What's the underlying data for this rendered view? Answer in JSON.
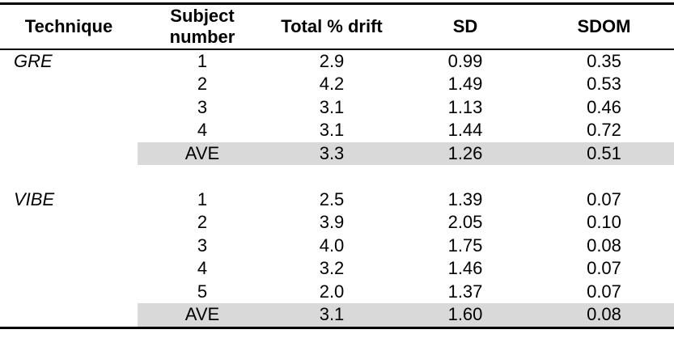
{
  "colors": {
    "background": "#ffffff",
    "text": "#000000",
    "rule": "#000000",
    "average_band": "#d9d9d9"
  },
  "table": {
    "headers": {
      "technique": "Technique",
      "subject": "Subject number",
      "drift": "Total % drift",
      "sd": "SD",
      "sdom": "SDOM"
    },
    "groups": [
      {
        "technique": "GRE",
        "rows": [
          {
            "subject": "1",
            "drift": "2.9",
            "sd": "0.99",
            "sdom": "0.35"
          },
          {
            "subject": "2",
            "drift": "4.2",
            "sd": "1.49",
            "sdom": "0.53"
          },
          {
            "subject": "3",
            "drift": "3.1",
            "sd": "1.13",
            "sdom": "0.46"
          },
          {
            "subject": "4",
            "drift": "3.1",
            "sd": "1.44",
            "sdom": "0.72"
          }
        ],
        "average": {
          "subject": "AVE",
          "drift": "3.3",
          "sd": "1.26",
          "sdom": "0.51"
        }
      },
      {
        "technique": "VIBE",
        "rows": [
          {
            "subject": "1",
            "drift": "2.5",
            "sd": "1.39",
            "sdom": "0.07"
          },
          {
            "subject": "2",
            "drift": "3.9",
            "sd": "2.05",
            "sdom": "0.10"
          },
          {
            "subject": "3",
            "drift": "4.0",
            "sd": "1.75",
            "sdom": "0.08"
          },
          {
            "subject": "4",
            "drift": "3.2",
            "sd": "1.46",
            "sdom": "0.07"
          },
          {
            "subject": "5",
            "drift": "2.0",
            "sd": "1.37",
            "sdom": "0.07"
          }
        ],
        "average": {
          "subject": "AVE",
          "drift": "3.1",
          "sd": "1.60",
          "sdom": "0.08"
        }
      }
    ]
  }
}
